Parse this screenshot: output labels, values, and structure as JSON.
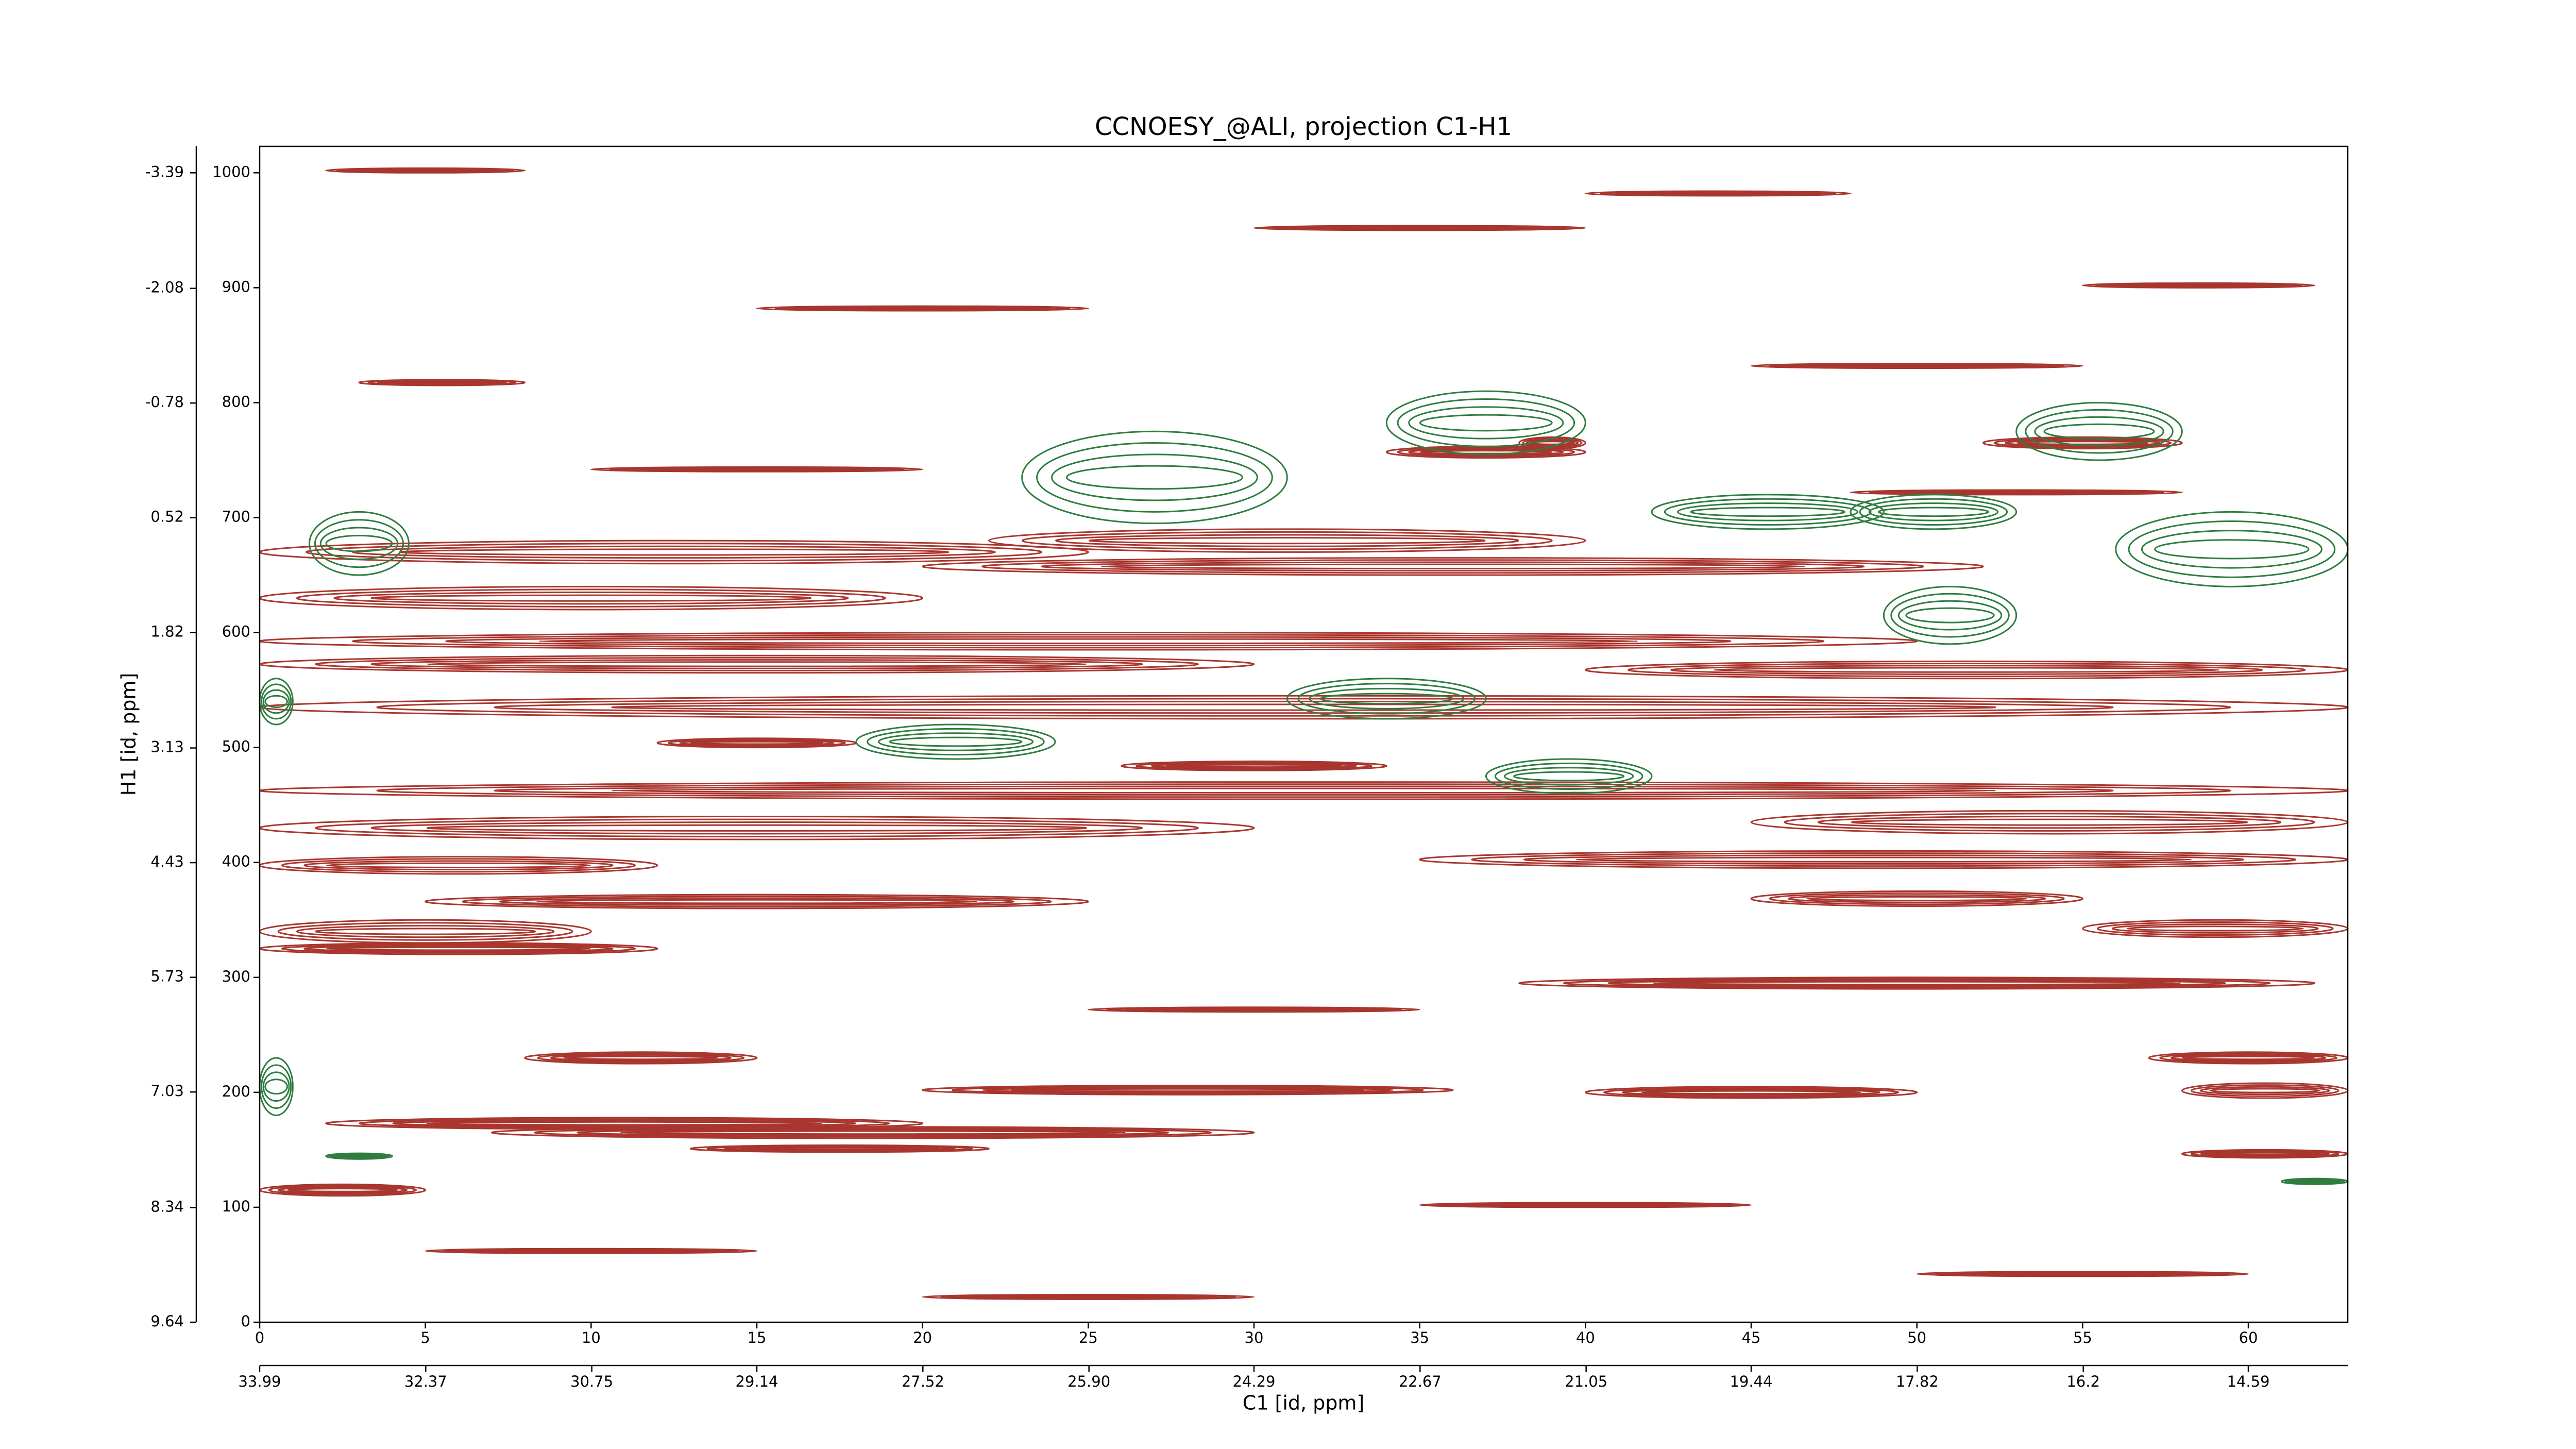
{
  "chart_data": {
    "type": "contour",
    "title": "CCNOESY_@ALI, projection C1-H1",
    "xlabel": "C1 [id, ppm]",
    "ylabel": "H1 [id, ppm]",
    "xlim": [
      0,
      63
    ],
    "ylim": [
      0,
      1023
    ],
    "xticks": [
      0,
      5,
      10,
      15,
      20,
      25,
      30,
      35,
      40,
      45,
      50,
      55,
      60
    ],
    "yticks": [
      0,
      100,
      200,
      300,
      400,
      500,
      600,
      700,
      800,
      900,
      1000
    ],
    "x2lim": [
      33.99,
      13.62
    ],
    "x2ticks": [
      33.99,
      32.37,
      30.75,
      29.14,
      27.52,
      {
        "value": 25.9,
        "label": "25.90"
      },
      24.29,
      22.67,
      21.05,
      19.44,
      17.82,
      16.2,
      14.59
    ],
    "y2lim": [
      9.64,
      -3.69
    ],
    "y2ticks": [
      9.64,
      8.34,
      7.03,
      5.73,
      4.43,
      3.13,
      1.82,
      0.52,
      -0.78,
      -2.08,
      -3.39
    ],
    "series": [
      {
        "color": "#a9362e",
        "bands": [
          [
            0,
            63,
            455,
            470
          ],
          [
            0,
            63,
            525,
            545
          ],
          [
            0,
            30,
            565,
            580
          ],
          [
            40,
            63,
            560,
            575
          ],
          [
            0,
            50,
            585,
            600
          ],
          [
            22,
            40,
            670,
            690
          ],
          [
            0,
            25,
            660,
            680
          ],
          [
            20,
            52,
            650,
            665
          ],
          [
            0,
            20,
            620,
            640
          ],
          [
            0,
            30,
            420,
            440
          ],
          [
            45,
            63,
            425,
            445
          ],
          [
            0,
            12,
            390,
            405
          ],
          [
            35,
            63,
            395,
            410
          ],
          [
            5,
            25,
            360,
            372
          ],
          [
            45,
            55,
            362,
            375
          ],
          [
            0,
            10,
            330,
            350
          ],
          [
            55,
            63,
            335,
            350
          ],
          [
            0,
            12,
            320,
            330
          ],
          [
            38,
            62,
            290,
            300
          ],
          [
            8,
            15,
            225,
            235
          ],
          [
            57,
            63,
            225,
            235
          ],
          [
            20,
            36,
            198,
            206
          ],
          [
            40,
            50,
            195,
            205
          ],
          [
            58,
            63,
            195,
            208
          ],
          [
            2,
            20,
            168,
            178
          ],
          [
            7,
            30,
            160,
            170
          ],
          [
            13,
            22,
            148,
            154
          ],
          [
            58,
            63,
            143,
            150
          ],
          [
            0,
            5,
            110,
            120
          ],
          [
            38,
            40,
            760,
            770
          ],
          [
            52,
            58,
            760,
            770
          ],
          [
            34,
            40,
            752,
            762
          ],
          [
            3,
            8,
            815,
            820
          ],
          [
            2,
            8,
            1000,
            1004
          ],
          [
            30,
            40,
            950,
            954
          ],
          [
            15,
            25,
            880,
            884
          ],
          [
            45,
            55,
            830,
            834
          ],
          [
            10,
            20,
            740,
            744
          ],
          [
            48,
            58,
            720,
            724
          ],
          [
            25,
            35,
            270,
            274
          ],
          [
            5,
            15,
            60,
            64
          ],
          [
            35,
            45,
            100,
            104
          ],
          [
            50,
            60,
            40,
            44
          ],
          [
            20,
            30,
            20,
            24
          ],
          [
            40,
            48,
            980,
            984
          ],
          [
            55,
            62,
            900,
            904
          ],
          [
            12,
            18,
            500,
            508
          ],
          [
            26,
            34,
            480,
            488
          ]
        ]
      },
      {
        "color": "#2e7d3f",
        "bands": [
          [
            1.5,
            4.5,
            650,
            705
          ],
          [
            23,
            31,
            695,
            775
          ],
          [
            34,
            40,
            755,
            810
          ],
          [
            42,
            49,
            690,
            720
          ],
          [
            48,
            53,
            690,
            720
          ],
          [
            53,
            58,
            750,
            800
          ],
          [
            56,
            63,
            640,
            705
          ],
          [
            49,
            53,
            590,
            640
          ],
          [
            31,
            37,
            525,
            560
          ],
          [
            0,
            1,
            520,
            560
          ],
          [
            18,
            24,
            490,
            520
          ],
          [
            37,
            42,
            460,
            490
          ],
          [
            0,
            1,
            180,
            230
          ],
          [
            2,
            4,
            142,
            147
          ],
          [
            61,
            63,
            120,
            125
          ]
        ]
      }
    ]
  }
}
